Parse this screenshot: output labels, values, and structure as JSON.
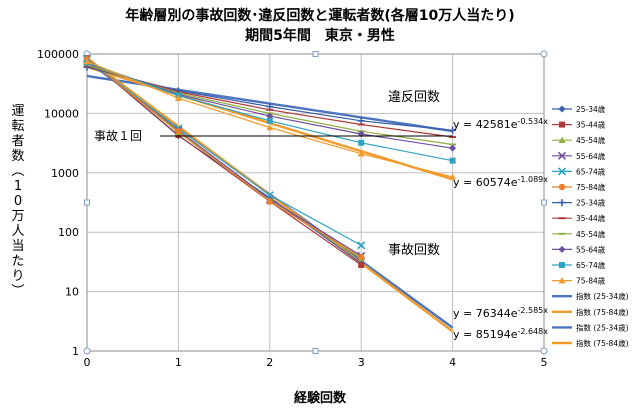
{
  "chart_data": {
    "type": "scatter",
    "title": "年齢層別の事故回数･違反回数と運転者数(各層10万人当たり)",
    "subtitle": "期間5年間　東京・男性",
    "xlabel": "経験回数",
    "ylabel": "運転者数(10万人当たり)",
    "x_ticks": [
      "0",
      "1",
      "2",
      "3",
      "4",
      "5"
    ],
    "y_ticks": [
      "1",
      "10",
      "100",
      "1000",
      "10000",
      "100000"
    ],
    "xlim": [
      0,
      5
    ],
    "ylim": [
      1,
      100000
    ],
    "y_scale": "log",
    "grid": true,
    "legend_position": "right",
    "annotations": {
      "violation": "違反回数",
      "accident": "事故回数",
      "accident_one": "事故１回"
    },
    "fit_labels": [
      {
        "base": "y = 42581e",
        "exp": "-0.534x"
      },
      {
        "base": "y = 60574e",
        "exp": "-1.089x"
      },
      {
        "base": "y = 76344e",
        "exp": "-2.585x"
      },
      {
        "base": "y = 85194e",
        "exp": "-2.648x"
      }
    ],
    "series": [
      {
        "name": "25-34歳",
        "color": "#3a5fa8",
        "marker": "diamond",
        "x": [
          0,
          1,
          2,
          3
        ],
        "y": [
          85000,
          4200,
          380,
          30
        ]
      },
      {
        "name": "35-44歳",
        "color": "#b03a3a",
        "marker": "square",
        "x": [
          0,
          1,
          2,
          3
        ],
        "y": [
          85000,
          4300,
          330,
          28
        ]
      },
      {
        "name": "45-54歳",
        "color": "#8fb041",
        "marker": "triangle",
        "x": [
          0,
          1,
          2,
          3
        ],
        "y": [
          84000,
          4800,
          340,
          36
        ]
      },
      {
        "name": "55-64歳",
        "color": "#6f4f9b",
        "marker": "x",
        "x": [
          0,
          1,
          2,
          3
        ],
        "y": [
          83000,
          5200,
          360,
          40
        ]
      },
      {
        "name": "65-74歳",
        "color": "#2fa3bf",
        "marker": "x",
        "x": [
          0,
          1,
          2,
          3
        ],
        "y": [
          82000,
          5600,
          420,
          60
        ]
      },
      {
        "name": "75-84歳",
        "color": "#e8812c",
        "marker": "circle",
        "x": [
          0,
          1,
          2,
          3
        ],
        "y": [
          82000,
          5000,
          330,
          38
        ]
      },
      {
        "name": "25-34歳",
        "color": "#3a5fa8",
        "marker": "plus",
        "x": [
          0,
          1,
          2,
          3,
          4
        ],
        "y": [
          60000,
          24000,
          13000,
          7500,
          5200
        ]
      },
      {
        "name": "35-44歳",
        "color": "#b03a3a",
        "marker": "dash",
        "x": [
          0,
          1,
          2,
          3,
          4
        ],
        "y": [
          63000,
          23000,
          11500,
          6500,
          4000
        ]
      },
      {
        "name": "45-54歳",
        "color": "#8fb041",
        "marker": "dash",
        "x": [
          0,
          1,
          2,
          3,
          4
        ],
        "y": [
          65000,
          22000,
          10000,
          5000,
          3000
        ]
      },
      {
        "name": "55-64歳",
        "color": "#6f4f9b",
        "marker": "diamond",
        "x": [
          0,
          1,
          2,
          3,
          4
        ],
        "y": [
          70000,
          21000,
          9000,
          4500,
          2600
        ]
      },
      {
        "name": "65-74歳",
        "color": "#2fa3bf",
        "marker": "square",
        "x": [
          0,
          1,
          2,
          3,
          4
        ],
        "y": [
          72000,
          20000,
          7500,
          3200,
          1600
        ]
      },
      {
        "name": "75-84歳",
        "color": "#f39a2d",
        "marker": "triangle",
        "x": [
          0,
          1,
          2,
          3,
          4
        ],
        "y": [
          75000,
          18000,
          5800,
          2100,
          850
        ]
      }
    ],
    "trendlines": [
      {
        "name": "指数 (25-34歳)",
        "color": "#4a74bf",
        "a": 42581,
        "b": -0.534,
        "x_range": [
          0,
          4
        ]
      },
      {
        "name": "指数 (75-84歳)",
        "color": "#f39a2d",
        "a": 60574,
        "b": -1.089,
        "x_range": [
          0,
          4
        ]
      },
      {
        "name": "指数 (25-34歳)",
        "color": "#4a74bf",
        "a": 76344,
        "b": -2.585,
        "x_range": [
          0,
          4
        ]
      },
      {
        "name": "指数 (75-84歳)",
        "color": "#f39a2d",
        "a": 85194,
        "b": -2.648,
        "x_range": [
          0,
          4
        ]
      }
    ]
  }
}
